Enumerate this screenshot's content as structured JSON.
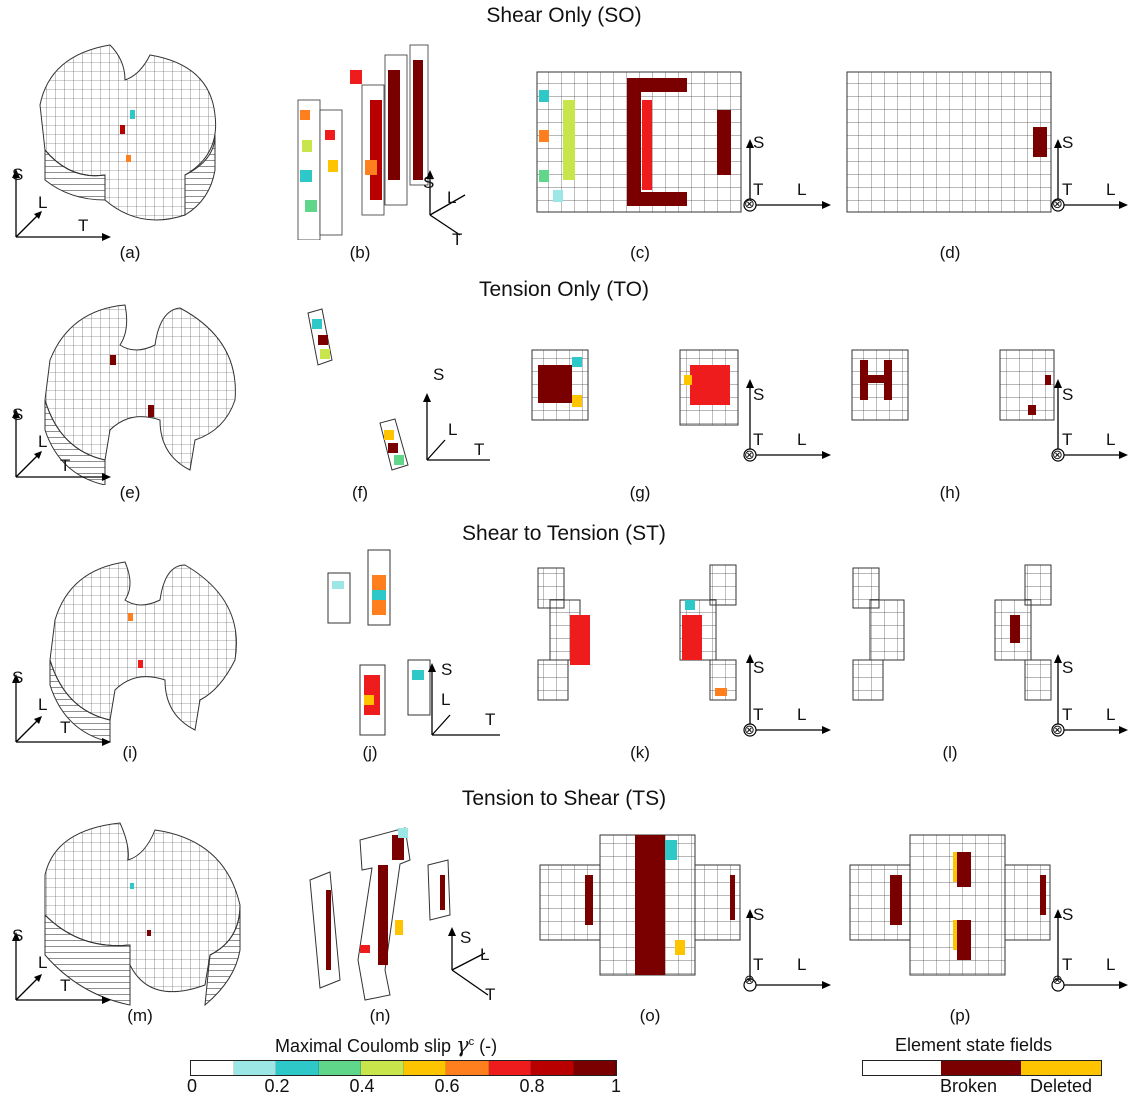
{
  "rows": [
    {
      "title": "Shear Only (SO)",
      "labels": [
        "(a)",
        "(b)",
        "(c)",
        "(d)"
      ]
    },
    {
      "title": "Tension Only (TO)",
      "labels": [
        "(e)",
        "(f)",
        "(g)",
        "(h)"
      ]
    },
    {
      "title": "Shear to Tension (ST)",
      "labels": [
        "(i)",
        "(j)",
        "(k)",
        "(l)"
      ]
    },
    {
      "title": "Tension to Shear (TS)",
      "labels": [
        "(m)",
        "(n)",
        "(o)",
        "(p)"
      ]
    }
  ],
  "axes": {
    "s": "S",
    "l": "L",
    "t": "T",
    "out_of_plane": "⊗"
  },
  "colorbar": {
    "title": "Maximal Coulomb slip",
    "symbol": "γ",
    "superscript": "c",
    "unit": "(-)",
    "ticks": [
      "0",
      "0.2",
      "0.4",
      "0.6",
      "0.8",
      "1"
    ],
    "colors": [
      "#ffffff",
      "#9de6e6",
      "#2ec8c8",
      "#5fd68a",
      "#c8e64b",
      "#ffc400",
      "#ff7f1e",
      "#ee1c1c",
      "#b80000",
      "#7a0000"
    ]
  },
  "state_legend": {
    "title": "Element state fields",
    "broken": "Broken",
    "deleted": "Deleted",
    "colors": {
      "intact": "#ffffff",
      "broken": "#7a0000",
      "deleted": "#ffc400"
    }
  }
}
